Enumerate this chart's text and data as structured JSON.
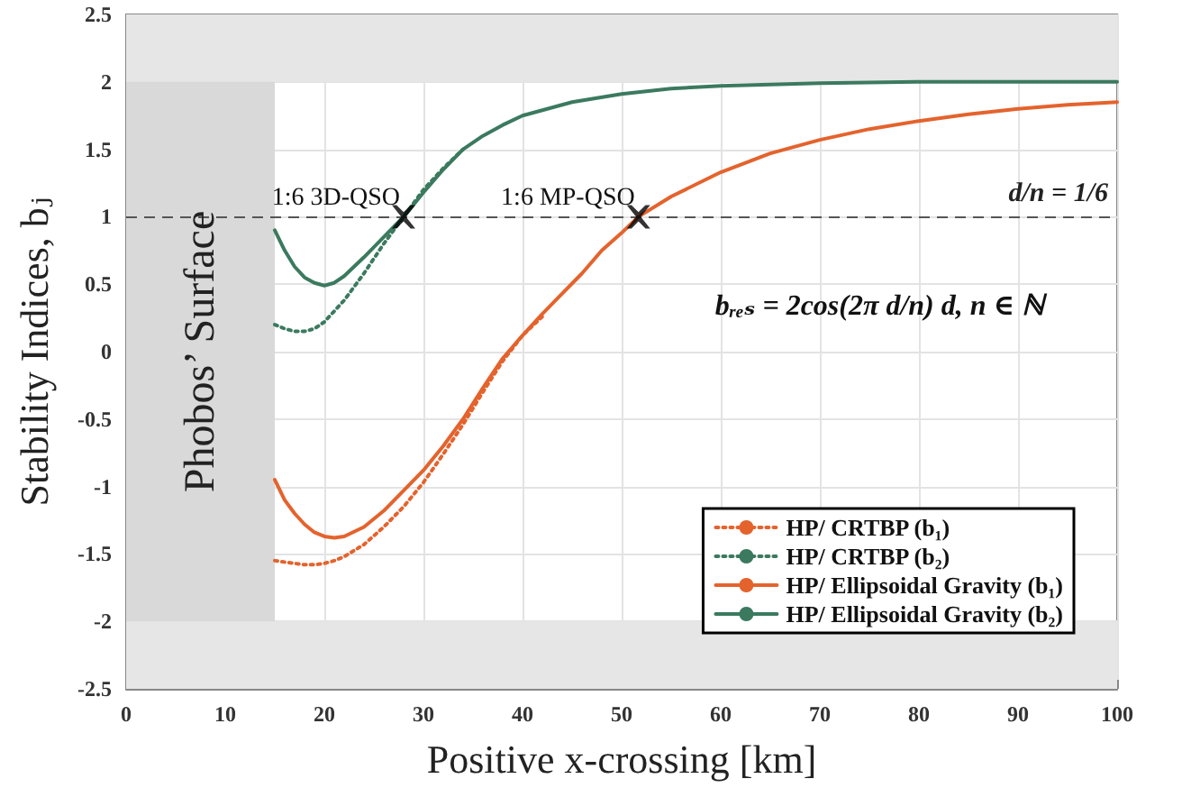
{
  "chart_data": {
    "type": "line",
    "xlabel": "Positive x-crossing [km]",
    "ylabel": "Stability Indices, bⱼ",
    "xlim": [
      0,
      100
    ],
    "xticks": [
      0,
      10,
      20,
      30,
      40,
      50,
      60,
      70,
      80,
      90,
      100
    ],
    "ylim": [
      -2.5,
      2.5
    ],
    "yticks": [
      -2.5,
      -2,
      -1.5,
      -1,
      -0.5,
      0,
      0.5,
      1,
      1.5,
      2,
      2.5
    ],
    "grid": true,
    "legend": "bottom right",
    "marker": "none",
    "series": [
      {
        "name": "HP/ CRTBP (b₁)",
        "color": "#e4632d",
        "line_style": "dotted",
        "x": [
          15,
          16,
          17,
          18,
          19,
          20,
          21,
          22,
          24,
          26,
          28,
          30,
          32,
          34,
          36,
          38,
          40,
          42
        ],
        "values": [
          -1.55,
          -1.56,
          -1.57,
          -1.58,
          -1.58,
          -1.57,
          -1.55,
          -1.52,
          -1.43,
          -1.3,
          -1.15,
          -0.97,
          -0.76,
          -0.54,
          -0.3,
          -0.07,
          0.12,
          0.26
        ]
      },
      {
        "name": "HP/ CRTBP (b₂)",
        "color": "#3b7a5f",
        "line_style": "dotted",
        "x": [
          15,
          16,
          17,
          18,
          19,
          20,
          22,
          24,
          26,
          28,
          30,
          32,
          34
        ],
        "values": [
          0.2,
          0.17,
          0.15,
          0.15,
          0.17,
          0.22,
          0.38,
          0.58,
          0.8,
          1.0,
          1.2,
          1.36,
          1.5
        ]
      },
      {
        "name": "HP/ Ellipsoidal Gravity (b₁)",
        "color": "#e4632d",
        "line_style": "solid",
        "x": [
          15,
          16,
          17,
          18,
          19,
          20,
          21,
          22,
          24,
          26,
          28,
          30,
          32,
          34,
          36,
          38,
          40,
          42,
          44,
          46,
          48,
          50,
          51.7,
          55,
          60,
          65,
          70,
          75,
          80,
          85,
          90,
          95,
          100
        ],
        "values": [
          -0.95,
          -1.1,
          -1.2,
          -1.28,
          -1.34,
          -1.37,
          -1.38,
          -1.37,
          -1.3,
          -1.18,
          -1.03,
          -0.88,
          -0.7,
          -0.5,
          -0.27,
          -0.05,
          0.12,
          0.28,
          0.43,
          0.58,
          0.75,
          0.88,
          1.0,
          1.15,
          1.33,
          1.47,
          1.57,
          1.65,
          1.71,
          1.76,
          1.8,
          1.83,
          1.85
        ]
      },
      {
        "name": "HP/ Ellipsoidal Gravity (b₂)",
        "color": "#3b7a5f",
        "line_style": "solid",
        "x": [
          15,
          16,
          17,
          18,
          19,
          20,
          21,
          22,
          24,
          26,
          28,
          30,
          32,
          34,
          36,
          38,
          40,
          45,
          50,
          55,
          60,
          70,
          80,
          90,
          100
        ],
        "values": [
          0.9,
          0.75,
          0.63,
          0.55,
          0.51,
          0.49,
          0.51,
          0.56,
          0.7,
          0.85,
          1.0,
          1.18,
          1.35,
          1.5,
          1.6,
          1.68,
          1.75,
          1.85,
          1.91,
          1.95,
          1.97,
          1.99,
          2.0,
          2.0,
          2.0
        ]
      },
      {
        "type": "scatter",
        "marker": "cross",
        "color": "#000000",
        "x": [
          28,
          51.7
        ],
        "values": [
          1,
          1
        ]
      }
    ],
    "ref_lines": [
      {
        "axis": "y",
        "value": 1,
        "label": "d/n = 1/6",
        "color": "#555555",
        "line_style": "dashed"
      }
    ],
    "bands": [
      {
        "axis": "x",
        "from": 0,
        "to": 15,
        "label": "Phobos’ Surface",
        "color": "#d9d9d9"
      },
      {
        "axis": "y",
        "from": 2,
        "to": 2.5,
        "color": "#e6e6e6"
      },
      {
        "axis": "y",
        "from": -2.5,
        "to": -2,
        "color": "#e6e6e6"
      }
    ],
    "annotations": [
      {
        "text": "1:6 3D-QSO",
        "x": 28,
        "y": 1
      },
      {
        "text": "1:6 MP-QSO",
        "x": 51.7,
        "y": 1
      },
      "bᵣₑₛ = 2cos(2π d/n) d, n ∈ ℕ"
    ]
  }
}
